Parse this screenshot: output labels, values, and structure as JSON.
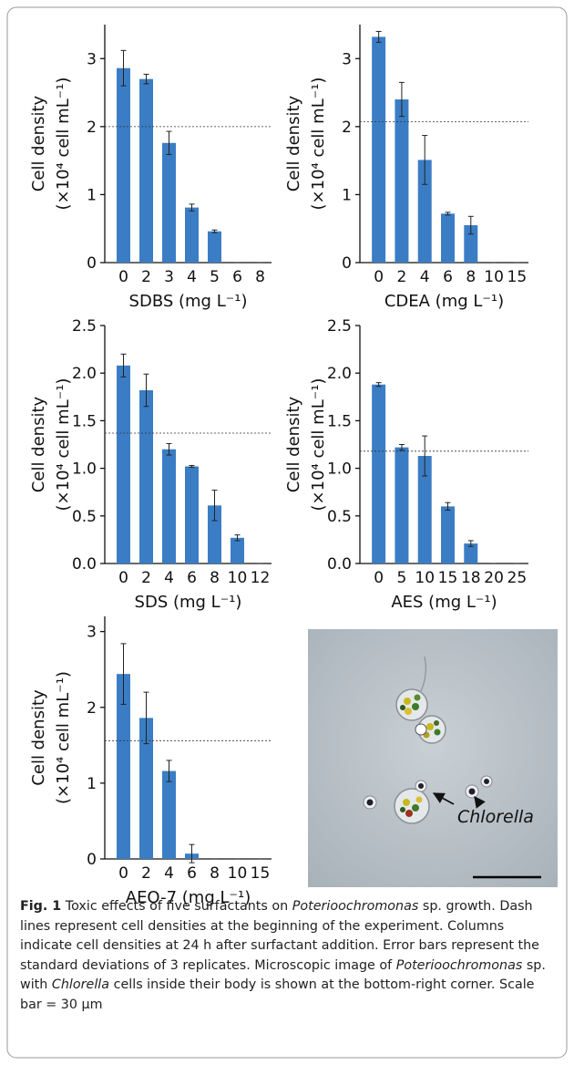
{
  "chart_data": [
    {
      "type": "bar",
      "xlabel": "SDBS (mg L⁻¹)",
      "ylabel": [
        "Cell density",
        "(×10⁴ cell mL⁻¹)"
      ],
      "categories": [
        "0",
        "2",
        "3",
        "4",
        "5",
        "6",
        "8"
      ],
      "values": [
        2.86,
        2.7,
        1.76,
        0.81,
        0.46,
        0,
        0
      ],
      "errors": [
        0.26,
        0.07,
        0.17,
        0.05,
        0.02,
        0,
        0
      ],
      "reference": 2.0,
      "color": "#3b7dc4",
      "ylim": [
        0,
        3.5
      ],
      "yticks": [
        0,
        1,
        2,
        3
      ]
    },
    {
      "type": "bar",
      "xlabel": "CDEA (mg L⁻¹)",
      "ylabel": [
        "Cell density",
        "(×10⁴ cell mL⁻¹)"
      ],
      "categories": [
        "0",
        "2",
        "4",
        "6",
        "8",
        "10",
        "15"
      ],
      "values": [
        3.32,
        2.4,
        1.51,
        0.72,
        0.55,
        0,
        0
      ],
      "errors": [
        0.08,
        0.25,
        0.36,
        0.02,
        0.13,
        0,
        0
      ],
      "reference": 2.07,
      "color": "#3b7dc4",
      "ylim": [
        0,
        3.5
      ],
      "yticks": [
        0,
        1,
        2,
        3
      ]
    },
    {
      "type": "bar",
      "xlabel": "SDS (mg L⁻¹)",
      "ylabel": [
        "Cell density",
        "(×10⁴ cell mL⁻¹)"
      ],
      "categories": [
        "0",
        "2",
        "4",
        "6",
        "8",
        "10",
        "12"
      ],
      "values": [
        2.08,
        1.82,
        1.2,
        1.02,
        0.61,
        0.27,
        0
      ],
      "errors": [
        0.12,
        0.17,
        0.06,
        0.01,
        0.16,
        0.03,
        0
      ],
      "reference": 1.37,
      "color": "#3b7dc4",
      "ylim": [
        0,
        2.5
      ],
      "yticks": [
        {
          "value": 0,
          "label": "0.0"
        },
        {
          "value": 0.5,
          "label": "0.5"
        },
        {
          "value": 1,
          "label": "1.0"
        },
        {
          "value": 1.5,
          "label": "1.5"
        },
        {
          "value": 2,
          "label": "2.0"
        },
        {
          "value": 2.5,
          "label": "2.5"
        }
      ]
    },
    {
      "type": "bar",
      "xlabel": "AES (mg L⁻¹)",
      "ylabel": [
        "Cell density",
        "(×10⁴ cell mL⁻¹)"
      ],
      "categories": [
        "0",
        "5",
        "10",
        "15",
        "18",
        "20",
        "25"
      ],
      "values": [
        1.88,
        1.22,
        1.13,
        0.6,
        0.21,
        0,
        0
      ],
      "errors": [
        0.02,
        0.03,
        0.21,
        0.04,
        0.03,
        0,
        0
      ],
      "reference": 1.18,
      "color": "#3b7dc4",
      "ylim": [
        0,
        2.5
      ],
      "yticks": [
        {
          "value": 0,
          "label": "0.0"
        },
        {
          "value": 0.5,
          "label": "0.5"
        },
        {
          "value": 1,
          "label": "1.0"
        },
        {
          "value": 1.5,
          "label": "1.5"
        },
        {
          "value": 2,
          "label": "2.0"
        },
        {
          "value": 2.5,
          "label": "2.5"
        }
      ]
    },
    {
      "type": "bar",
      "xlabel": "AEO-7 (mg L⁻¹)",
      "ylabel": [
        "Cell density",
        "(×10⁴ cell mL⁻¹)"
      ],
      "categories": [
        "0",
        "2",
        "4",
        "6",
        "8",
        "10",
        "15"
      ],
      "values": [
        2.44,
        1.86,
        1.16,
        0.07,
        0,
        0,
        0
      ],
      "errors": [
        0.4,
        0.34,
        0.14,
        0.12,
        0,
        0,
        0
      ],
      "reference": 1.56,
      "color": "#3b7dc4",
      "ylim": [
        0,
        3.2
      ],
      "yticks": [
        0,
        1,
        2,
        3
      ]
    }
  ],
  "image": {
    "label": "Chlorella"
  },
  "caption": {
    "label": "Fig. 1",
    "segments": [
      {
        "text": " Toxic effects of five surfactants on "
      },
      {
        "text": "Poterioochromonas",
        "italic": true
      },
      {
        "text": " sp. growth. Dash lines represent cell densities at the beginning of the experiment. Columns indicate cell densities at 24 h after surfactant addition. Error bars represent the standard deviations of 3 replicates. Microscopic image of "
      },
      {
        "text": "Poterioochromonas",
        "italic": true
      },
      {
        "text": " sp. with "
      },
      {
        "text": "Chlorella",
        "italic": true
      },
      {
        "text": " cells inside their body is shown at the bottom-right corner. Scale bar = 30 μm"
      }
    ]
  }
}
